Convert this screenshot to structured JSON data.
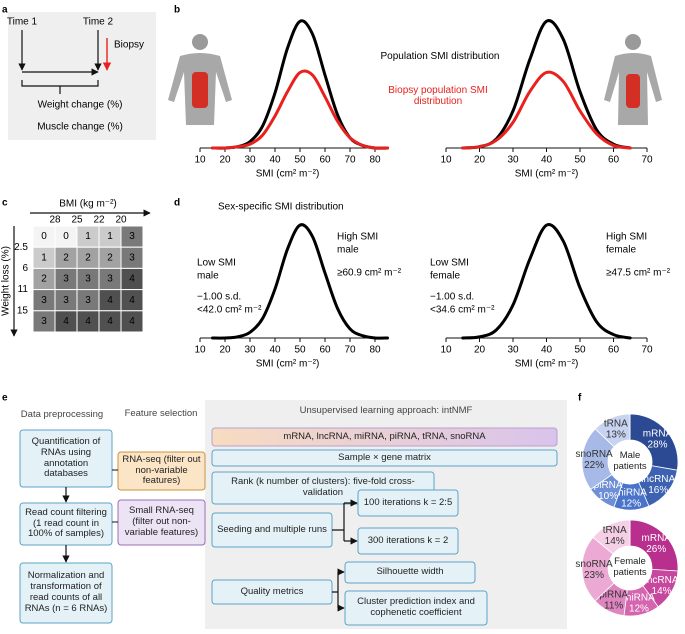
{
  "panel_letters": [
    "a",
    "b",
    "c",
    "d",
    "e",
    "f"
  ],
  "panel_a": {
    "time1": "Time 1",
    "time2": "Time 2",
    "biopsy": "Biopsy",
    "weight": "Weight change (%)",
    "muscle": "Muscle change (%)"
  },
  "panel_c": {
    "xlabel": "BMI (kg m⁻²)",
    "ylabel": "Weight loss (%)",
    "columns": [
      28,
      25,
      22,
      20
    ],
    "rows": [
      2.5,
      6,
      11,
      15
    ],
    "cells": [
      [
        0,
        0,
        1,
        1,
        3
      ],
      [
        1,
        2,
        2,
        2,
        3
      ],
      [
        2,
        3,
        3,
        3,
        4
      ],
      [
        3,
        3,
        3,
        4,
        4
      ],
      [
        3,
        4,
        4,
        4,
        4
      ]
    ]
  },
  "panel_e": {
    "headers": [
      "Data preprocessing",
      "Feature selection",
      "Unsupervised learning approach: intNMF"
    ],
    "preprocessing": [
      "Quantification of RNAs using annotation databases",
      "Read count filtering (1 read count in 100% of samples)",
      "Normalization and transformation of read counts of all RNAs (n = 6 RNAs)"
    ],
    "features": [
      "RNA-seq (filter out non-variable features)",
      "Small RNA-seq (filter out non-variable features)"
    ],
    "steps": [
      "mRNA, lncRNA, miRNA, piRNA, tRNA, snoRNA",
      "Sample × gene matrix",
      "Rank (k number of clusters): five-fold cross-validation",
      "Seeding and multiple runs",
      "100 iterations k = 2:5",
      "300 iterations k = 2",
      "Quality metrics",
      "Silhouette width",
      "Cluster prediction index and cophenetic coefficient"
    ]
  },
  "chart_data": [
    {
      "type": "line",
      "xlabel": "SMI (cm² m⁻²)",
      "x": [
        15,
        20,
        25,
        30,
        35,
        40,
        45,
        50,
        55,
        60,
        65,
        70,
        75,
        80,
        85
      ],
      "xlim": [
        10,
        85
      ],
      "xticks": [
        10,
        20,
        30,
        40,
        50,
        60,
        70,
        80
      ],
      "ylim": [
        0,
        100
      ],
      "series": [
        {
          "name": "Population SMI distribution",
          "color": "#000000",
          "values": [
            0,
            0,
            1,
            5,
            17,
            43,
            78,
            99,
            89,
            57,
            26,
            8,
            2,
            0,
            0
          ]
        },
        {
          "name": "Biopsy population SMI distribution",
          "color": "#e8211e",
          "values": [
            0,
            0,
            1,
            3,
            10,
            25,
            44,
            59,
            57,
            40,
            21,
            8,
            2,
            0,
            0
          ]
        }
      ]
    },
    {
      "type": "line",
      "xlabel": "SMI (cm² m⁻²)",
      "x": [
        15,
        20,
        25,
        30,
        35,
        40,
        45,
        50,
        55,
        60,
        65
      ],
      "xlim": [
        10,
        70
      ],
      "xticks": [
        10,
        20,
        30,
        40,
        50,
        60,
        70
      ],
      "ylim": [
        0,
        100
      ],
      "series": [
        {
          "color": "#000000",
          "values": [
            0,
            1,
            7,
            29,
            69,
            99,
            85,
            44,
            14,
            3,
            0
          ]
        },
        {
          "color": "#e8211e",
          "values": [
            0,
            1,
            6,
            20,
            44,
            59,
            52,
            29,
            11,
            2,
            0
          ]
        }
      ]
    },
    {
      "type": "line",
      "title": "Sex-specific SMI distribution",
      "xlabel": "SMI (cm² m⁻²)",
      "x": [
        15,
        20,
        25,
        30,
        35,
        40,
        45,
        50,
        55,
        60,
        65,
        70,
        75,
        80,
        85
      ],
      "xlim": [
        10,
        85
      ],
      "xticks": [
        10,
        20,
        30,
        40,
        50,
        60,
        70,
        80
      ],
      "ylim": [
        0,
        100
      ],
      "annotations": [
        "Low SMI",
        "male",
        "−1.00 s.d.",
        "<42.0 cm² m⁻²",
        "High SMI",
        "male",
        "≥60.9 cm² m⁻²"
      ],
      "series": [
        {
          "color": "#000000",
          "values": [
            0,
            0,
            1,
            5,
            17,
            43,
            78,
            99,
            89,
            57,
            26,
            8,
            2,
            0,
            0
          ]
        }
      ]
    },
    {
      "type": "line",
      "xlabel": "SMI (cm² m⁻²)",
      "x": [
        15,
        20,
        25,
        30,
        35,
        40,
        45,
        50,
        55,
        60,
        65
      ],
      "xlim": [
        10,
        70
      ],
      "xticks": [
        10,
        20,
        30,
        40,
        50,
        60,
        70
      ],
      "ylim": [
        0,
        100
      ],
      "annotations": [
        "Low SMI",
        "female",
        "−1.00 s.d.",
        "<34.6 cm² m⁻²",
        "High SMI",
        "female",
        "≥47.5 cm² m⁻²"
      ],
      "series": [
        {
          "color": "#000000",
          "values": [
            0,
            1,
            7,
            29,
            69,
            99,
            85,
            44,
            14,
            3,
            0
          ]
        }
      ]
    },
    {
      "type": "donut",
      "center": "Male patients",
      "categories": [
        "mRNA",
        "lncRNA",
        "miRNA",
        "piRNA",
        "snoRNA",
        "tRNA"
      ],
      "values": [
        28,
        16,
        12,
        10,
        22,
        13
      ],
      "value_labels": [
        "28%",
        "16%",
        "12%",
        "10%",
        "22%",
        "13%"
      ],
      "colors": [
        "#2b4a93",
        "#3d62b2",
        "#4a74c9",
        "#6e8fd6",
        "#a7b9e6",
        "#c7d3f0"
      ]
    },
    {
      "type": "donut",
      "center": "Female patients",
      "categories": [
        "mRNA",
        "lncRNA",
        "miRNA",
        "piRNA",
        "snoRNA",
        "tRNA"
      ],
      "values": [
        26,
        14,
        12,
        11,
        23,
        14
      ],
      "value_labels": [
        "26%",
        "14%",
        "12%",
        "11%",
        "23%",
        "14%"
      ],
      "colors": [
        "#b82f8e",
        "#c8479e",
        "#d465ae",
        "#de86c0",
        "#eba9d3",
        "#f5cfe6"
      ]
    }
  ]
}
